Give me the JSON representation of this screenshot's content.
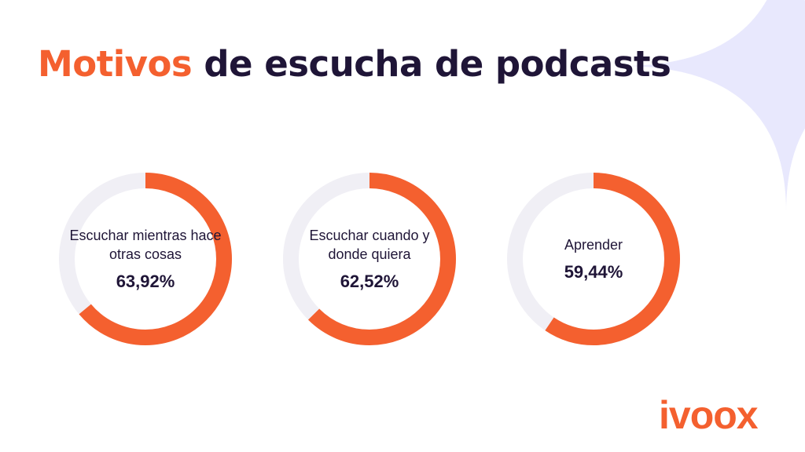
{
  "title": {
    "accent": "Motivos",
    "rest": " de escucha de podcasts"
  },
  "colors": {
    "accent": "#f4602f",
    "track": "#f0eff5",
    "text": "#1f1537",
    "decoration": "#e8e8fd"
  },
  "chart_data": {
    "type": "donut",
    "items": [
      {
        "label": "Escuchar mientras hace otras cosas",
        "value": 63.92,
        "display": "63,92%"
      },
      {
        "label": "Escuchar cuando y donde quiera",
        "value": 62.52,
        "display": "62,52%"
      },
      {
        "label": "Aprender",
        "value": 59.44,
        "display": "59,44%"
      }
    ]
  },
  "logo": "ivoox"
}
